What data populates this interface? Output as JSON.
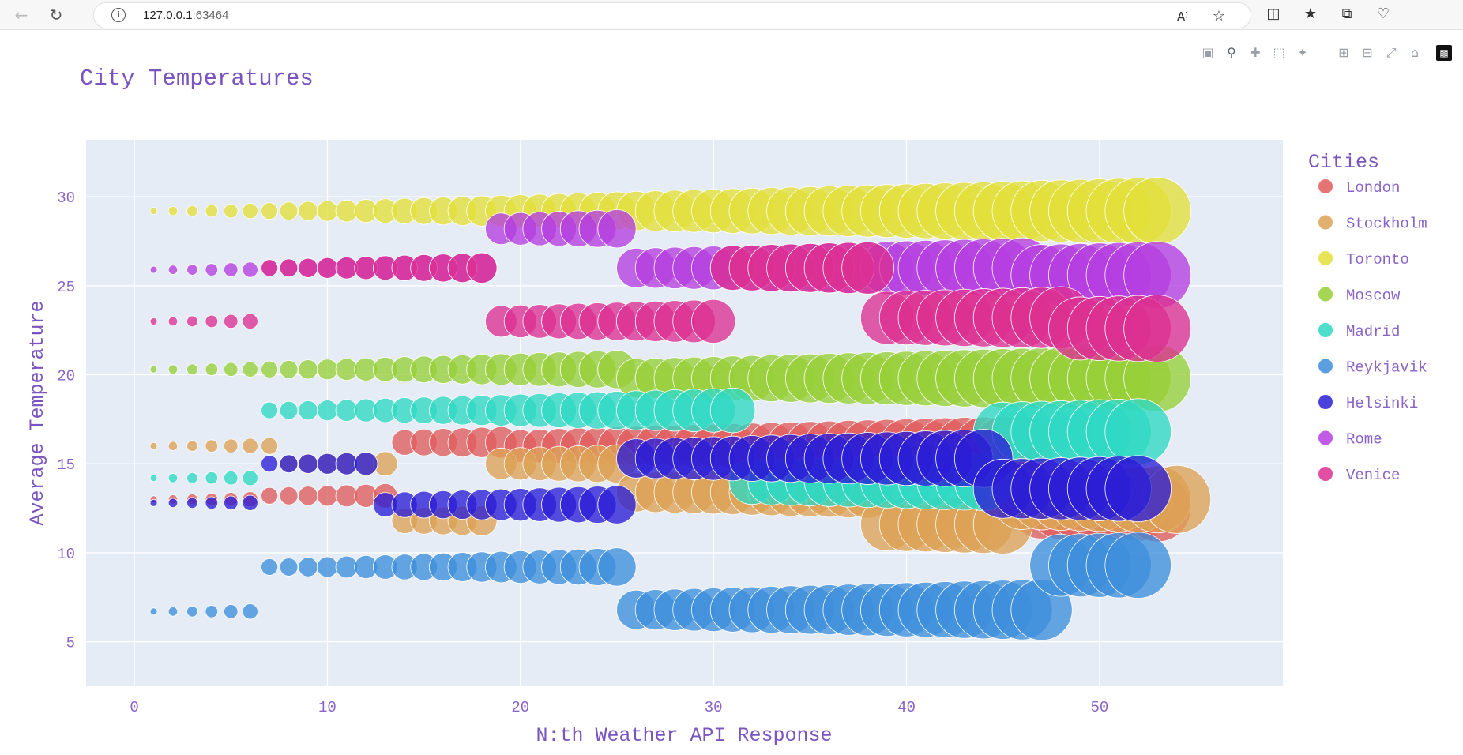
{
  "browser": {
    "url_host": "127.0.0.1",
    "url_port": ":63464",
    "icons": [
      "back-icon",
      "refresh-icon",
      "info-icon",
      "read-aloud-icon",
      "favorite-star-icon",
      "split-screen-icon",
      "favorites-icon",
      "collections-icon",
      "browser-essentials-icon"
    ]
  },
  "modebar": {
    "icons": [
      "camera-icon",
      "zoom-icon",
      "pan-icon",
      "box-select-icon",
      "lasso-select-icon",
      "zoom-in-icon",
      "zoom-out-icon",
      "autoscale-icon",
      "reset-axes-icon",
      "plotly-logo-icon"
    ]
  },
  "chart_data": {
    "type": "scatter",
    "mode": "bubble",
    "title": "City Temperatures",
    "xlabel": "N:th Weather API Response",
    "ylabel": "Average Temperature",
    "xlim": [
      -2.5,
      59.5
    ],
    "ylim": [
      2.5,
      33.2
    ],
    "xticks": [
      0,
      10,
      20,
      30,
      40,
      50
    ],
    "yticks": [
      5,
      10,
      15,
      20,
      25,
      30
    ],
    "grid": true,
    "legend_title": "Cities",
    "legend_position": "right",
    "bubble_size": "grows with response index",
    "series": [
      {
        "name": "London",
        "color": "#e05c5c",
        "segments": [
          [
            1,
            6,
            13.0
          ],
          [
            7,
            13,
            13.2
          ],
          [
            14,
            19,
            16.2
          ],
          [
            20,
            25,
            16.0
          ],
          [
            26,
            36,
            16.0
          ],
          [
            37,
            46,
            16.0
          ],
          [
            47,
            53,
            12.5
          ]
        ]
      },
      {
        "name": "Stockholm",
        "color": "#dda255",
        "segments": [
          [
            1,
            7,
            16.0
          ],
          [
            8,
            13,
            15.0
          ],
          [
            14,
            18,
            11.8
          ],
          [
            19,
            25,
            15.0
          ],
          [
            26,
            38,
            13.4
          ],
          [
            39,
            45,
            11.6
          ],
          [
            46,
            54,
            13.0
          ]
        ]
      },
      {
        "name": "Toronto",
        "color": "#e3df3a",
        "segments": [
          [
            1,
            53,
            29.2
          ]
        ]
      },
      {
        "name": "Moscow",
        "color": "#97cf38",
        "segments": [
          [
            1,
            25,
            20.3
          ],
          [
            26,
            53,
            19.8
          ]
        ]
      },
      {
        "name": "Madrid",
        "color": "#2ed8c3",
        "segments": [
          [
            1,
            6,
            14.2
          ],
          [
            7,
            31,
            18.0
          ],
          [
            32,
            44,
            14.0
          ],
          [
            45,
            52,
            16.8
          ]
        ]
      },
      {
        "name": "Reykjavik",
        "color": "#3e8edb",
        "segments": [
          [
            1,
            6,
            6.7
          ],
          [
            7,
            25,
            9.2
          ],
          [
            26,
            47,
            6.8
          ],
          [
            48,
            52,
            9.3
          ]
        ]
      },
      {
        "name": "Helsinki",
        "color": "#2a1ed6",
        "segments": [
          [
            1,
            6,
            12.8
          ],
          [
            7,
            12,
            15.0
          ],
          [
            13,
            25,
            12.7
          ],
          [
            26,
            44,
            15.3
          ],
          [
            45,
            52,
            13.6
          ]
        ]
      },
      {
        "name": "Rome",
        "color": "#b53ee0",
        "segments": [
          [
            1,
            6,
            25.9
          ],
          [
            7,
            18,
            26.0
          ],
          [
            19,
            25,
            28.2
          ],
          [
            26,
            46,
            26.0
          ],
          [
            47,
            53,
            25.6
          ]
        ]
      },
      {
        "name": "Venice",
        "color": "#dd2f91",
        "segments": [
          [
            1,
            6,
            23.0
          ],
          [
            7,
            18,
            26.0
          ],
          [
            19,
            30,
            23.0
          ],
          [
            31,
            38,
            26.0
          ],
          [
            39,
            48,
            23.2
          ],
          [
            49,
            53,
            22.6
          ]
        ]
      }
    ]
  }
}
